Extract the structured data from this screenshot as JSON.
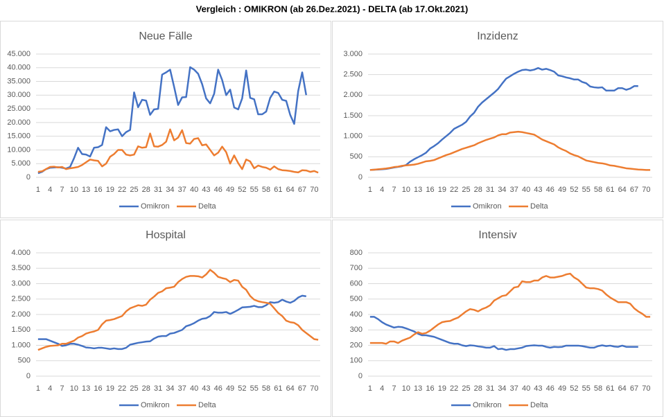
{
  "title": "Vergleich :    OMIKRON (ab 26.Dez.2021)    -    DELTA (ab 17.Okt.2021)",
  "chart_data": [
    {
      "type": "line",
      "title": "Neue Fälle",
      "categories": [
        1,
        null,
        null,
        4,
        null,
        null,
        7,
        null,
        null,
        10,
        null,
        null,
        13,
        null,
        null,
        16,
        null,
        null,
        19,
        null,
        null,
        22,
        null,
        null,
        25,
        null,
        null,
        28,
        null,
        null,
        31,
        null,
        null,
        34,
        null,
        null,
        37,
        null,
        null,
        40,
        null,
        null,
        43,
        null,
        null,
        46,
        null,
        null,
        49,
        null,
        null,
        52,
        null,
        null,
        55,
        null,
        null,
        58,
        null,
        null,
        61,
        null,
        null,
        64,
        null,
        null,
        67,
        null,
        null,
        70,
        null
      ],
      "series": [
        {
          "name": "Omikron",
          "color": "#4472c4",
          "values": [
            1500,
            2000,
            3000,
            3500,
            3600,
            3700,
            3500,
            3200,
            3800,
            7000,
            10800,
            8500,
            8300,
            7600,
            10800,
            11000,
            11800,
            18300,
            16800,
            17300,
            17500,
            15000,
            16500,
            17300,
            31000,
            25600,
            28300,
            28000,
            22800,
            24800,
            25000,
            37500,
            38300,
            39300,
            33000,
            26400,
            29200,
            29300,
            40200,
            39300,
            37800,
            34000,
            28800,
            27000,
            30500,
            39300,
            35500,
            30000,
            32000,
            25500,
            24800,
            28800,
            39000,
            29000,
            28500,
            23000,
            23000,
            24000,
            29000,
            31300,
            30800,
            28300,
            27900,
            22800,
            19500,
            31500,
            38300,
            30000,
            null,
            null,
            null
          ]
        },
        {
          "name": "Delta",
          "color": "#ed7d31",
          "values": [
            2000,
            2200,
            3000,
            3800,
            3900,
            3600,
            3800,
            3000,
            3300,
            3500,
            3800,
            4500,
            5500,
            6500,
            6200,
            6000,
            4000,
            5000,
            7500,
            8500,
            10000,
            10000,
            8300,
            8000,
            8300,
            11300,
            10800,
            11000,
            16000,
            11300,
            11200,
            11800,
            13000,
            17500,
            13500,
            14500,
            17200,
            12500,
            12300,
            14000,
            14300,
            11700,
            12000,
            10000,
            8000,
            9000,
            11200,
            9200,
            5000,
            8000,
            5200,
            3000,
            6500,
            5800,
            3300,
            4300,
            3800,
            3500,
            2800,
            4000,
            3000,
            2600,
            2500,
            2300,
            2000,
            1800,
            2600,
            2500,
            2000,
            2300,
            1700
          ]
        }
      ],
      "ylim": [
        0,
        45000
      ],
      "yticks": [
        0,
        {
          "value": 5000,
          "label": "5.000"
        },
        {
          "value": 10000,
          "label": "10.000"
        },
        {
          "value": 15000,
          "label": "15.000"
        },
        {
          "value": 20000,
          "label": "20.000"
        },
        {
          "value": 25000,
          "label": "25.000"
        },
        {
          "value": 30000,
          "label": "30.000"
        },
        {
          "value": 35000,
          "label": "35.000"
        },
        {
          "value": 40000,
          "label": "40.000"
        },
        {
          "value": 45000,
          "label": "45.000"
        }
      ],
      "grid": true,
      "legend": "bottom"
    },
    {
      "type": "line",
      "title": "Inzidenz",
      "categories": [
        1,
        null,
        null,
        4,
        null,
        null,
        7,
        null,
        null,
        10,
        null,
        null,
        13,
        null,
        null,
        16,
        null,
        null,
        19,
        null,
        null,
        22,
        null,
        null,
        25,
        null,
        null,
        28,
        null,
        null,
        31,
        null,
        null,
        34,
        null,
        null,
        37,
        null,
        null,
        40,
        null,
        null,
        43,
        null,
        null,
        46,
        null,
        null,
        49,
        null,
        null,
        52,
        null,
        null,
        55,
        null,
        null,
        58,
        null,
        null,
        61,
        null,
        null,
        64,
        null,
        null,
        67,
        null,
        null,
        70,
        null
      ],
      "series": [
        {
          "name": "Omikron",
          "color": "#4472c4",
          "values": [
            180,
            185,
            190,
            195,
            205,
            220,
            240,
            255,
            270,
            300,
            380,
            440,
            490,
            540,
            600,
            700,
            760,
            830,
            920,
            1000,
            1080,
            1180,
            1230,
            1280,
            1350,
            1480,
            1570,
            1720,
            1820,
            1900,
            1980,
            2060,
            2150,
            2280,
            2400,
            2460,
            2520,
            2570,
            2610,
            2620,
            2600,
            2620,
            2660,
            2620,
            2640,
            2610,
            2570,
            2480,
            2460,
            2430,
            2410,
            2380,
            2380,
            2320,
            2290,
            2210,
            2190,
            2180,
            2190,
            2110,
            2110,
            2110,
            2170,
            2170,
            2130,
            2160,
            2220,
            2220,
            null,
            null,
            null
          ]
        },
        {
          "name": "Delta",
          "color": "#ed7d31",
          "values": [
            180,
            185,
            195,
            205,
            215,
            230,
            250,
            260,
            280,
            290,
            300,
            310,
            330,
            360,
            390,
            400,
            420,
            460,
            500,
            540,
            570,
            610,
            650,
            690,
            720,
            750,
            780,
            830,
            870,
            910,
            940,
            970,
            1020,
            1050,
            1050,
            1090,
            1100,
            1110,
            1100,
            1080,
            1060,
            1040,
            980,
            920,
            880,
            840,
            800,
            730,
            680,
            640,
            580,
            540,
            510,
            460,
            410,
            390,
            370,
            350,
            340,
            320,
            290,
            280,
            260,
            240,
            220,
            210,
            200,
            190,
            185,
            180,
            180
          ]
        }
      ],
      "ylim": [
        0,
        3000
      ],
      "yticks": [
        0,
        500,
        {
          "value": 1000,
          "label": "1.000"
        },
        {
          "value": 1500,
          "label": "1.500"
        },
        {
          "value": 2000,
          "label": "2.000"
        },
        {
          "value": 2500,
          "label": "2.500"
        },
        {
          "value": 3000,
          "label": "3.000"
        }
      ],
      "grid": true,
      "legend": "bottom"
    },
    {
      "type": "line",
      "title": "Hospital",
      "categories": [
        1,
        null,
        null,
        4,
        null,
        null,
        7,
        null,
        null,
        10,
        null,
        null,
        13,
        null,
        null,
        16,
        null,
        null,
        19,
        null,
        null,
        22,
        null,
        null,
        25,
        null,
        null,
        28,
        null,
        null,
        31,
        null,
        null,
        34,
        null,
        null,
        37,
        null,
        null,
        40,
        null,
        null,
        43,
        null,
        null,
        46,
        null,
        null,
        49,
        null,
        null,
        52,
        null,
        null,
        55,
        null,
        null,
        58,
        null,
        null,
        61,
        null,
        null,
        64,
        null,
        null,
        67,
        null,
        null,
        70,
        null
      ],
      "series": [
        {
          "name": "Omikron",
          "color": "#4472c4",
          "values": [
            1200,
            1200,
            1200,
            1150,
            1100,
            1050,
            980,
            1000,
            1050,
            1050,
            1020,
            980,
            930,
            920,
            900,
            920,
            920,
            900,
            880,
            900,
            880,
            880,
            920,
            1020,
            1050,
            1080,
            1100,
            1120,
            1130,
            1220,
            1280,
            1300,
            1300,
            1380,
            1400,
            1450,
            1500,
            1620,
            1660,
            1720,
            1800,
            1860,
            1880,
            1950,
            2080,
            2060,
            2060,
            2080,
            2020,
            2080,
            2150,
            2230,
            2240,
            2250,
            2280,
            2240,
            2240,
            2300,
            2400,
            2380,
            2400,
            2480,
            2420,
            2380,
            2440,
            2550,
            2610,
            2590,
            null,
            null,
            null
          ]
        },
        {
          "name": "Delta",
          "color": "#ed7d31",
          "values": [
            850,
            900,
            950,
            980,
            990,
            1000,
            1050,
            1050,
            1100,
            1150,
            1250,
            1300,
            1380,
            1420,
            1450,
            1500,
            1680,
            1800,
            1820,
            1850,
            1900,
            1950,
            2100,
            2200,
            2250,
            2300,
            2280,
            2320,
            2480,
            2580,
            2700,
            2750,
            2850,
            2870,
            2900,
            3050,
            3150,
            3220,
            3250,
            3250,
            3240,
            3200,
            3300,
            3450,
            3350,
            3220,
            3180,
            3150,
            3050,
            3120,
            3100,
            2900,
            2800,
            2600,
            2480,
            2430,
            2400,
            2380,
            2350,
            2200,
            2050,
            1950,
            1800,
            1750,
            1730,
            1650,
            1500,
            1400,
            1300,
            1200,
            1180
          ]
        }
      ],
      "ylim": [
        0,
        4000
      ],
      "yticks": [
        0,
        500,
        {
          "value": 1000,
          "label": "1.000"
        },
        {
          "value": 1500,
          "label": "1.500"
        },
        {
          "value": 2000,
          "label": "2.000"
        },
        {
          "value": 2500,
          "label": "2.500"
        },
        {
          "value": 3000,
          "label": "3.000"
        },
        {
          "value": 3500,
          "label": "3.500"
        },
        {
          "value": 4000,
          "label": "4.000"
        }
      ],
      "grid": true,
      "legend": "bottom"
    },
    {
      "type": "line",
      "title": "Intensiv",
      "categories": [
        1,
        null,
        null,
        4,
        null,
        null,
        7,
        null,
        null,
        10,
        null,
        null,
        13,
        null,
        null,
        16,
        null,
        null,
        19,
        null,
        null,
        22,
        null,
        null,
        25,
        null,
        null,
        28,
        null,
        null,
        31,
        null,
        null,
        34,
        null,
        null,
        37,
        null,
        null,
        40,
        null,
        null,
        43,
        null,
        null,
        46,
        null,
        null,
        49,
        null,
        null,
        52,
        null,
        null,
        55,
        null,
        null,
        58,
        null,
        null,
        61,
        null,
        null,
        64,
        null,
        null,
        67,
        null,
        null,
        70,
        null
      ],
      "series": [
        {
          "name": "Omikron",
          "color": "#4472c4",
          "values": [
            385,
            385,
            370,
            350,
            335,
            325,
            315,
            320,
            318,
            310,
            300,
            290,
            275,
            265,
            265,
            260,
            255,
            245,
            235,
            225,
            215,
            210,
            210,
            200,
            195,
            200,
            198,
            193,
            190,
            185,
            185,
            195,
            175,
            178,
            170,
            175,
            175,
            180,
            185,
            195,
            198,
            200,
            198,
            198,
            190,
            185,
            190,
            188,
            190,
            198,
            198,
            198,
            198,
            195,
            190,
            185,
            185,
            195,
            200,
            195,
            198,
            192,
            190,
            198,
            190,
            190,
            190,
            190,
            null,
            null,
            null
          ]
        },
        {
          "name": "Delta",
          "color": "#ed7d31",
          "values": [
            215,
            215,
            215,
            215,
            210,
            225,
            225,
            215,
            230,
            240,
            250,
            270,
            285,
            275,
            280,
            295,
            315,
            335,
            350,
            355,
            358,
            370,
            380,
            400,
            420,
            435,
            430,
            420,
            435,
            445,
            460,
            490,
            505,
            520,
            525,
            550,
            575,
            580,
            615,
            610,
            610,
            620,
            620,
            640,
            650,
            640,
            640,
            645,
            650,
            660,
            665,
            640,
            625,
            600,
            575,
            570,
            570,
            565,
            555,
            530,
            510,
            495,
            480,
            480,
            480,
            470,
            440,
            420,
            405,
            385,
            385
          ]
        }
      ],
      "ylim": [
        0,
        800
      ],
      "yticks": [
        0,
        100,
        200,
        300,
        400,
        500,
        600,
        700,
        800
      ],
      "grid": true,
      "legend": "bottom"
    }
  ]
}
